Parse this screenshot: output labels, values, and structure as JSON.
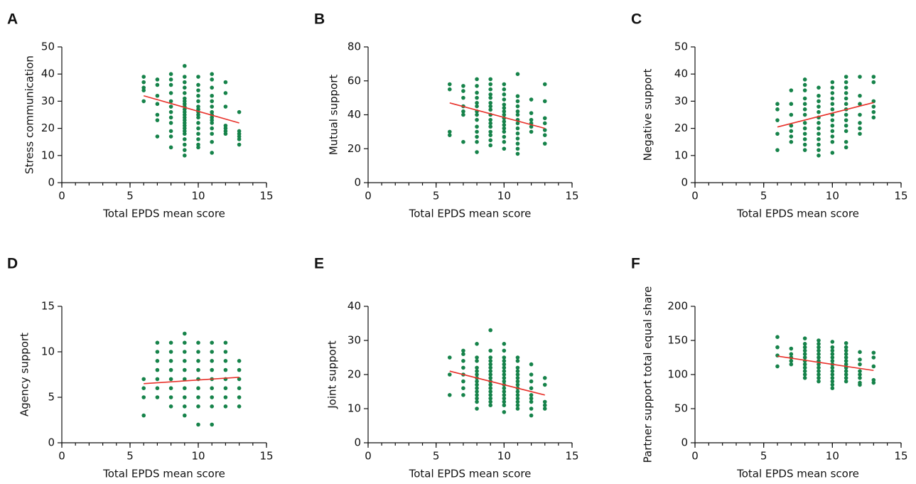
{
  "chart_data": [
    {
      "type": "scatter",
      "panel": "A",
      "xlabel": "Total EPDS mean score",
      "ylabel": "Stress communication",
      "xlim": [
        0,
        15
      ],
      "ylim": [
        0,
        50
      ],
      "xticks": [
        0,
        5,
        10,
        15
      ],
      "yticks": [
        0,
        10,
        20,
        30,
        40,
        50
      ],
      "minor_step": 1,
      "color": "#16834a",
      "fit_color": "#e8312a",
      "x": [
        6,
        6,
        6,
        6,
        6,
        7,
        7,
        7,
        7,
        7,
        7,
        7,
        8,
        8,
        8,
        8,
        8,
        8,
        8,
        8,
        8,
        8,
        8,
        8,
        9,
        9,
        9,
        9,
        9,
        9,
        9,
        9,
        9,
        9,
        9,
        9,
        9,
        9,
        9,
        9,
        9,
        9,
        9,
        9,
        9,
        9,
        9,
        10,
        10,
        10,
        10,
        10,
        10,
        10,
        10,
        10,
        10,
        10,
        10,
        10,
        10,
        10,
        10,
        11,
        11,
        11,
        11,
        11,
        11,
        11,
        11,
        11,
        11,
        11,
        11,
        11,
        11,
        11,
        12,
        12,
        12,
        12,
        12,
        12,
        12,
        13,
        13,
        13,
        13,
        13,
        13
      ],
      "y": [
        39,
        37,
        35,
        34,
        30,
        38,
        36,
        32,
        29,
        25,
        23,
        17,
        40,
        38,
        36,
        33,
        30,
        28,
        26,
        24,
        22,
        19,
        17,
        13,
        43,
        39,
        37,
        35,
        33,
        31,
        30,
        29,
        28,
        27,
        26,
        25,
        24,
        23,
        22,
        21,
        20,
        19,
        18,
        16,
        14,
        12,
        10,
        39,
        36,
        34,
        32,
        30,
        28,
        27,
        26,
        25,
        24,
        22,
        20,
        18,
        16,
        14,
        13,
        40,
        38,
        35,
        32,
        30,
        28,
        26,
        25,
        24,
        23,
        22,
        20,
        18,
        15,
        11,
        37,
        33,
        28,
        21,
        20,
        19,
        18,
        26,
        19,
        18,
        17,
        16,
        14
      ],
      "fit": {
        "x": [
          6,
          13
        ],
        "y": [
          32,
          22
        ]
      }
    },
    {
      "type": "scatter",
      "panel": "B",
      "xlabel": "Total EPDS mean score",
      "ylabel": "Mutual support",
      "xlim": [
        0,
        15
      ],
      "ylim": [
        0,
        80
      ],
      "xticks": [
        0,
        5,
        10,
        15
      ],
      "yticks": [
        0,
        20,
        40,
        60,
        80
      ],
      "minor_step": 1,
      "color": "#16834a",
      "fit_color": "#e8312a",
      "x": [
        6,
        6,
        6,
        6,
        7,
        7,
        7,
        7,
        7,
        7,
        7,
        8,
        8,
        8,
        8,
        8,
        8,
        8,
        8,
        8,
        8,
        8,
        8,
        8,
        8,
        9,
        9,
        9,
        9,
        9,
        9,
        9,
        9,
        9,
        9,
        9,
        9,
        9,
        9,
        9,
        9,
        10,
        10,
        10,
        10,
        10,
        10,
        10,
        10,
        10,
        10,
        10,
        10,
        10,
        10,
        10,
        10,
        11,
        11,
        11,
        11,
        11,
        11,
        11,
        11,
        11,
        11,
        11,
        11,
        11,
        11,
        12,
        12,
        12,
        12,
        12,
        12,
        13,
        13,
        13,
        13,
        13,
        13,
        13
      ],
      "y": [
        58,
        55,
        30,
        28,
        57,
        54,
        50,
        45,
        42,
        40,
        24,
        61,
        57,
        53,
        50,
        47,
        45,
        42,
        40,
        37,
        33,
        30,
        27,
        24,
        18,
        61,
        58,
        55,
        52,
        50,
        47,
        45,
        43,
        40,
        37,
        35,
        33,
        30,
        28,
        25,
        22,
        58,
        55,
        52,
        49,
        46,
        44,
        42,
        40,
        38,
        36,
        34,
        32,
        30,
        27,
        24,
        20,
        64,
        51,
        48,
        45,
        42,
        40,
        37,
        35,
        32,
        29,
        26,
        23,
        20,
        17,
        49,
        41,
        37,
        35,
        33,
        30,
        58,
        48,
        38,
        35,
        31,
        28,
        23
      ],
      "fit": {
        "x": [
          6,
          13
        ],
        "y": [
          47,
          32
        ]
      }
    },
    {
      "type": "scatter",
      "panel": "C",
      "xlabel": "Total EPDS mean score",
      "ylabel": "Negative support",
      "xlim": [
        0,
        15
      ],
      "ylim": [
        0,
        50
      ],
      "xticks": [
        0,
        5,
        10,
        15
      ],
      "yticks": [
        0,
        10,
        20,
        30,
        40,
        50
      ],
      "minor_step": 1,
      "color": "#16834a",
      "fit_color": "#e8312a",
      "x": [
        6,
        6,
        6,
        6,
        6,
        7,
        7,
        7,
        7,
        7,
        7,
        7,
        8,
        8,
        8,
        8,
        8,
        8,
        8,
        8,
        8,
        8,
        8,
        8,
        8,
        9,
        9,
        9,
        9,
        9,
        9,
        9,
        9,
        9,
        9,
        9,
        9,
        9,
        10,
        10,
        10,
        10,
        10,
        10,
        10,
        10,
        10,
        10,
        10,
        10,
        10,
        11,
        11,
        11,
        11,
        11,
        11,
        11,
        11,
        11,
        11,
        11,
        11,
        11,
        12,
        12,
        12,
        12,
        12,
        12,
        12,
        13,
        13,
        13,
        13,
        13,
        13
      ],
      "y": [
        29,
        27,
        23,
        18,
        12,
        34,
        29,
        25,
        21,
        19,
        17,
        15,
        38,
        36,
        34,
        31,
        29,
        27,
        25,
        22,
        20,
        18,
        16,
        14,
        12,
        35,
        32,
        30,
        28,
        26,
        24,
        22,
        20,
        18,
        16,
        14,
        12,
        10,
        37,
        35,
        33,
        31,
        29,
        27,
        25,
        23,
        21,
        19,
        17,
        15,
        11,
        39,
        37,
        35,
        33,
        31,
        29,
        27,
        25,
        23,
        21,
        19,
        15,
        13,
        39,
        32,
        29,
        25,
        22,
        20,
        18,
        39,
        37,
        30,
        28,
        26,
        24
      ],
      "fit": {
        "x": [
          6,
          13
        ],
        "y": [
          20.5,
          29.5
        ]
      }
    },
    {
      "type": "scatter",
      "panel": "D",
      "xlabel": "Total EPDS mean score",
      "ylabel": "Agency support",
      "xlim": [
        0,
        15
      ],
      "ylim": [
        0,
        15
      ],
      "xticks": [
        0,
        5,
        10,
        15
      ],
      "yticks": [
        0,
        5,
        10,
        15
      ],
      "minor_step": 1,
      "color": "#16834a",
      "fit_color": "#e8312a",
      "x": [
        6,
        6,
        6,
        6,
        7,
        7,
        7,
        7,
        7,
        7,
        7,
        8,
        8,
        8,
        8,
        8,
        8,
        8,
        8,
        9,
        9,
        9,
        9,
        9,
        9,
        9,
        9,
        9,
        9,
        10,
        10,
        10,
        10,
        10,
        10,
        10,
        10,
        10,
        11,
        11,
        11,
        11,
        11,
        11,
        11,
        11,
        11,
        12,
        12,
        12,
        12,
        12,
        12,
        12,
        12,
        13,
        13,
        13,
        13,
        13,
        13
      ],
      "y": [
        7,
        6,
        5,
        3,
        11,
        10,
        9,
        8,
        7,
        6,
        5,
        11,
        10,
        9,
        8,
        7,
        6,
        5,
        4,
        12,
        11,
        10,
        9,
        8,
        7,
        6,
        5,
        4,
        3,
        11,
        10,
        9,
        8,
        7,
        6,
        5,
        4,
        2,
        11,
        10,
        9,
        8,
        7,
        6,
        5,
        4,
        2,
        11,
        10,
        9,
        8,
        7,
        6,
        5,
        4,
        9,
        8,
        7,
        6,
        5,
        4
      ],
      "fit": {
        "x": [
          6,
          13
        ],
        "y": [
          6.5,
          7.2
        ]
      }
    },
    {
      "type": "scatter",
      "panel": "E",
      "xlabel": "Total EPDS mean score",
      "ylabel": "Joint support",
      "xlim": [
        0,
        15
      ],
      "ylim": [
        0,
        40
      ],
      "xticks": [
        0,
        5,
        10,
        15
      ],
      "yticks": [
        0,
        10,
        20,
        30,
        40
      ],
      "minor_step": 1,
      "color": "#16834a",
      "fit_color": "#e8312a",
      "x": [
        6,
        6,
        6,
        7,
        7,
        7,
        7,
        7,
        7,
        7,
        7,
        8,
        8,
        8,
        8,
        8,
        8,
        8,
        8,
        8,
        8,
        8,
        8,
        8,
        8,
        8,
        9,
        9,
        9,
        9,
        9,
        9,
        9,
        9,
        9,
        9,
        9,
        9,
        9,
        9,
        9,
        9,
        9,
        10,
        10,
        10,
        10,
        10,
        10,
        10,
        10,
        10,
        10,
        10,
        10,
        10,
        10,
        10,
        10,
        10,
        10,
        11,
        11,
        11,
        11,
        11,
        11,
        11,
        11,
        11,
        11,
        11,
        11,
        11,
        11,
        11,
        12,
        12,
        12,
        12,
        12,
        12,
        12,
        12,
        12,
        13,
        13,
        13,
        13,
        13
      ],
      "y": [
        25,
        20,
        14,
        27,
        26,
        24,
        22,
        20,
        18,
        16,
        14,
        29,
        25,
        24,
        22,
        21,
        20,
        19,
        18,
        17,
        16,
        15,
        14,
        13,
        12,
        10,
        33,
        27,
        25,
        24,
        23,
        22,
        21,
        20,
        19,
        18,
        17,
        16,
        15,
        14,
        13,
        12,
        11,
        29,
        27,
        25,
        24,
        23,
        22,
        21,
        20,
        19,
        18,
        17,
        16,
        15,
        14,
        13,
        12,
        11,
        9,
        25,
        24,
        22,
        21,
        20,
        19,
        18,
        17,
        16,
        15,
        14,
        13,
        12,
        11,
        10,
        23,
        20,
        18,
        16,
        14,
        13,
        12,
        10,
        8,
        19,
        17,
        12,
        11,
        10
      ],
      "fit": {
        "x": [
          6,
          13
        ],
        "y": [
          21,
          14
        ]
      }
    },
    {
      "type": "scatter",
      "panel": "F",
      "xlabel": "Total EPDS mean score",
      "ylabel": "Partner support total equal share",
      "xlim": [
        0,
        15
      ],
      "ylim": [
        0,
        200
      ],
      "xticks": [
        0,
        5,
        10,
        15
      ],
      "yticks": [
        0,
        50,
        100,
        150,
        200
      ],
      "minor_step": 1,
      "color": "#16834a",
      "fit_color": "#e8312a",
      "x": [
        6,
        6,
        6,
        6,
        7,
        7,
        7,
        7,
        7,
        8,
        8,
        8,
        8,
        8,
        8,
        8,
        8,
        8,
        8,
        8,
        8,
        9,
        9,
        9,
        9,
        9,
        9,
        9,
        9,
        9,
        9,
        9,
        9,
        9,
        10,
        10,
        10,
        10,
        10,
        10,
        10,
        10,
        10,
        10,
        10,
        10,
        10,
        10,
        11,
        11,
        11,
        11,
        11,
        11,
        11,
        11,
        11,
        11,
        11,
        11,
        12,
        12,
        12,
        12,
        12,
        12,
        12,
        12,
        13,
        13,
        13,
        13,
        13
      ],
      "y": [
        155,
        140,
        128,
        112,
        138,
        130,
        125,
        120,
        115,
        153,
        145,
        140,
        135,
        130,
        125,
        120,
        115,
        110,
        105,
        100,
        95,
        150,
        145,
        140,
        135,
        130,
        125,
        120,
        115,
        110,
        105,
        100,
        95,
        90,
        148,
        140,
        135,
        130,
        125,
        120,
        115,
        110,
        105,
        100,
        95,
        90,
        85,
        80,
        146,
        140,
        135,
        130,
        125,
        120,
        115,
        110,
        105,
        100,
        95,
        90,
        133,
        122,
        115,
        105,
        100,
        95,
        88,
        85,
        132,
        125,
        112,
        92,
        88
      ],
      "fit": {
        "x": [
          6,
          13
        ],
        "y": [
          127,
          106
        ]
      }
    }
  ]
}
